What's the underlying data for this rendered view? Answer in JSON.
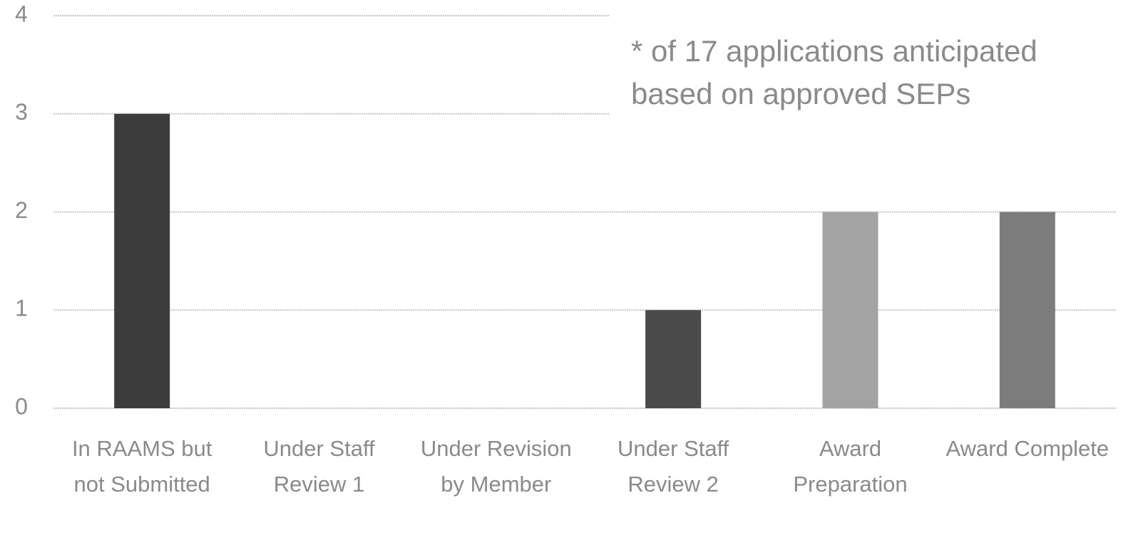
{
  "chart_data": {
    "type": "bar",
    "categories": [
      "In RAAMS but not Submitted",
      "Under Staff Review 1",
      "Under Revision by Member",
      "Under Staff Review 2",
      "Award Preparation",
      "Award Complete"
    ],
    "values": [
      3,
      0,
      0,
      1,
      2,
      2
    ],
    "colors": [
      "#3c3c3c",
      "#555555",
      "#6a6a6a",
      "#4a4a4a",
      "#a3a3a3",
      "#7c7c7c"
    ],
    "ylim": [
      0,
      4
    ],
    "yticks": [
      0,
      1,
      2,
      3,
      4
    ],
    "grid": true,
    "annotation": [
      "* of 17 applications anticipated",
      "based on approved SEPs"
    ]
  }
}
